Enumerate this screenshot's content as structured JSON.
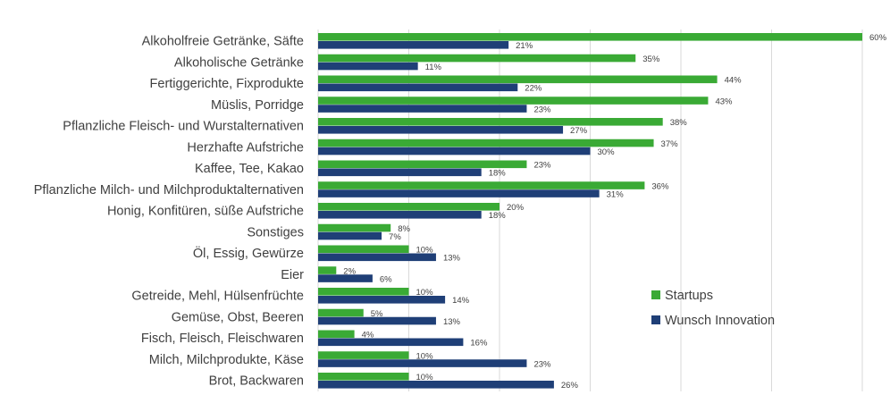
{
  "chart_data": {
    "type": "bar",
    "orientation": "horizontal",
    "categories": [
      "Alkoholfreie Getränke, Säfte",
      "Alkoholische Getränke",
      "Fertiggerichte, Fixprodukte",
      "Müslis, Porridge",
      "Pflanzliche Fleisch- und Wurstalternativen",
      "Herzhafte Aufstriche",
      "Kaffee, Tee, Kakao",
      "Pflanzliche Milch- und Milchproduktalternativen",
      "Honig, Konfitüren, süße Aufstriche",
      "Sonstiges",
      "Öl, Essig, Gewürze",
      "Eier",
      "Getreide, Mehl, Hülsenfrüchte",
      "Gemüse, Obst, Beeren",
      "Fisch, Fleisch, Fleischwaren",
      "Milch, Milchprodukte, Käse",
      "Brot, Backwaren"
    ],
    "series": [
      {
        "name": "Startups",
        "color": "#3aaa35",
        "values": [
          60,
          35,
          44,
          43,
          38,
          37,
          23,
          36,
          20,
          8,
          10,
          2,
          10,
          5,
          4,
          10,
          10
        ],
        "labels": [
          "60%",
          "35%",
          "44%",
          "43%",
          "38%",
          "37%",
          "23%",
          "36%",
          "20%",
          "8%",
          "10%",
          "2%",
          "10%",
          "5%",
          "4%",
          "10%",
          "10%"
        ]
      },
      {
        "name": "Wunsch Innovation",
        "color": "#1f3f77",
        "values": [
          21,
          11,
          22,
          23,
          27,
          30,
          18,
          31,
          18,
          7,
          13,
          6,
          14,
          13,
          16,
          23,
          26
        ],
        "labels": [
          "21%",
          "11%",
          "22%",
          "23%",
          "27%",
          "30%",
          "18%",
          "31%",
          "18%",
          "7%",
          "13%",
          "6%",
          "14%",
          "13%",
          "16%",
          "23%",
          "26%"
        ]
      }
    ],
    "xlim": [
      0,
      60
    ],
    "grid": true,
    "legend_position": "bottom-right"
  }
}
